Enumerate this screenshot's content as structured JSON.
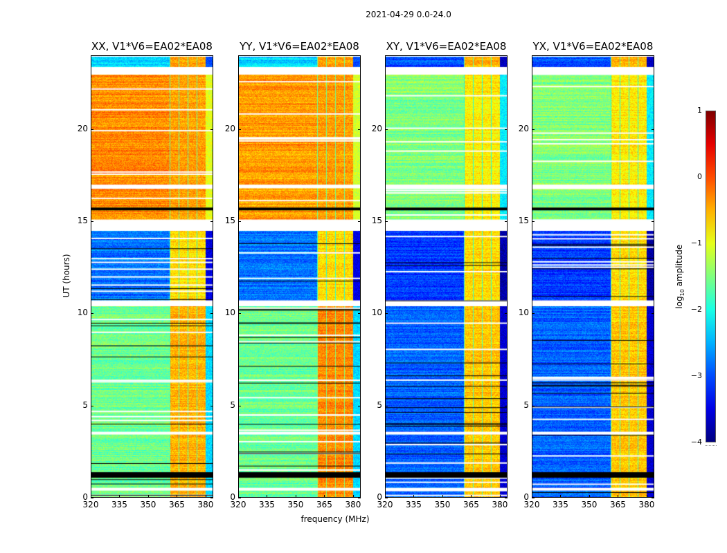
{
  "figure": {
    "suptitle": "2021-04-29 0.0-24.0",
    "xlabel": "frequency (MHz)",
    "ylabel": "UT (hours)",
    "colorbar_label_prefix": "log",
    "colorbar_label_sub": "10",
    "colorbar_label_suffix": " amplitude"
  },
  "chart_data": {
    "type": "heatmap",
    "title": "2021-04-29 0.0-24.0",
    "xlabel": "frequency (MHz)",
    "ylabel": "UT (hours)",
    "xlim": [
      320,
      384
    ],
    "ylim": [
      0,
      24
    ],
    "xticks": [
      "320",
      "335",
      "350",
      "365",
      "380"
    ],
    "xtick_values": [
      320,
      335,
      350,
      365,
      380
    ],
    "yticks": [
      "0",
      "5",
      "10",
      "15",
      "20"
    ],
    "ytick_values": [
      0,
      5,
      10,
      15,
      20
    ],
    "colormap": "jet",
    "colorbar": {
      "label": "log10 amplitude",
      "range": [
        -4,
        1
      ],
      "ticks": [
        "1",
        "0",
        "−1",
        "−2",
        "−3",
        "−4"
      ],
      "tick_values": [
        1,
        0,
        -1,
        -2,
        -3,
        -4
      ]
    },
    "rfi_band_mhz": [
      361,
      380
    ],
    "flagged_white_hours": [
      [
        14.5,
        15.1
      ],
      [
        10.4,
        10.7
      ],
      [
        16.8,
        17.0
      ],
      [
        0.35,
        0.5
      ],
      [
        3.4,
        3.55
      ],
      [
        23.3,
        23.4
      ]
    ],
    "flagged_black_hours": [
      [
        1.05,
        1.35
      ],
      [
        15.6,
        15.75
      ]
    ],
    "panels": [
      {
        "title": "XX, V1*V6=EA02*EA08",
        "segments": [
          {
            "hours": [
              0,
              10.4
            ],
            "level": -1.6,
            "rfi_level": -0.5
          },
          {
            "hours": [
              10.7,
              14.5
            ],
            "level": -2.8,
            "rfi_level": -0.7
          },
          {
            "hours": [
              15.1,
              23.0
            ],
            "level": -0.3,
            "rfi_level": -0.4
          },
          {
            "hours": [
              23.4,
              24
            ],
            "level": -2.3,
            "rfi_level": -0.4
          }
        ]
      },
      {
        "title": "YY, V1*V6=EA02*EA08",
        "segments": [
          {
            "hours": [
              0,
              10.4
            ],
            "level": -1.6,
            "rfi_level": -0.3
          },
          {
            "hours": [
              10.7,
              14.5
            ],
            "level": -2.8,
            "rfi_level": -0.7
          },
          {
            "hours": [
              15.1,
              23.0
            ],
            "level": -0.4,
            "rfi_level": -0.4
          },
          {
            "hours": [
              23.4,
              24
            ],
            "level": -2.3,
            "rfi_level": -0.4
          }
        ]
      },
      {
        "title": "XY, V1*V6=EA02*EA08",
        "segments": [
          {
            "hours": [
              0,
              10.4
            ],
            "level": -2.9,
            "rfi_level": -0.6
          },
          {
            "hours": [
              10.7,
              14.5
            ],
            "level": -3.1,
            "rfi_level": -0.7
          },
          {
            "hours": [
              15.1,
              23.0
            ],
            "level": -1.5,
            "rfi_level": -0.8
          },
          {
            "hours": [
              23.4,
              24
            ],
            "level": -3.0,
            "rfi_level": -0.5
          }
        ]
      },
      {
        "title": "YX, V1*V6=EA02*EA08",
        "segments": [
          {
            "hours": [
              0,
              10.4
            ],
            "level": -2.9,
            "rfi_level": -0.6
          },
          {
            "hours": [
              10.7,
              14.5
            ],
            "level": -3.1,
            "rfi_level": -0.7
          },
          {
            "hours": [
              15.1,
              23.0
            ],
            "level": -1.5,
            "rfi_level": -0.8
          },
          {
            "hours": [
              23.4,
              24
            ],
            "level": -3.0,
            "rfi_level": -0.5
          }
        ]
      }
    ]
  }
}
